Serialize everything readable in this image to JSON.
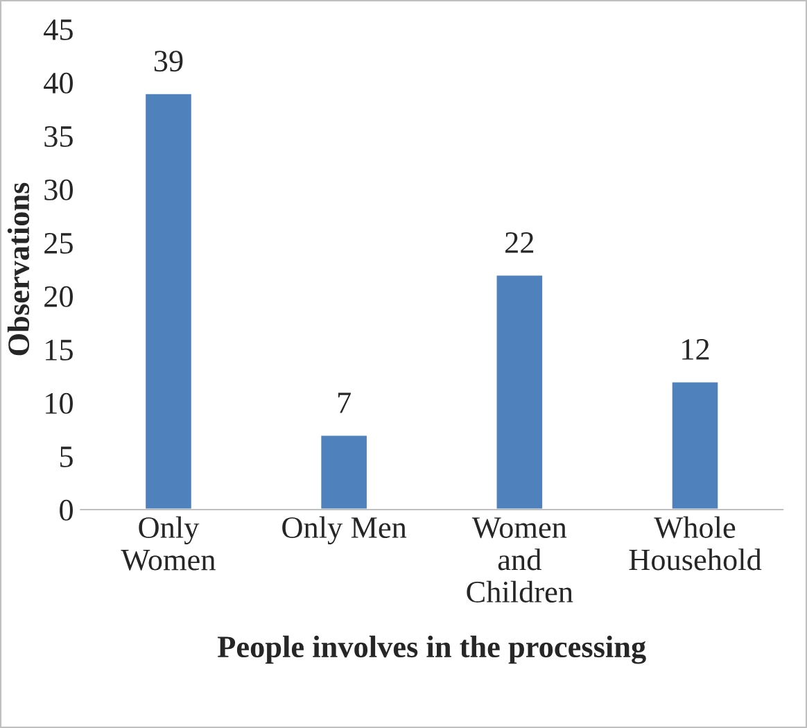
{
  "chart_data": {
    "type": "bar",
    "xlabel": "People involves in the processing",
    "ylabel": "Observations",
    "categories": [
      "Only\nWomen",
      "Only Men",
      "Women\nand\nChildren",
      "Whole\nHousehold"
    ],
    "values": [
      39,
      7,
      22,
      12
    ],
    "color": "#4f81bd",
    "ylim": [
      0,
      45
    ],
    "yticks": [
      0,
      5,
      10,
      15,
      20,
      25,
      30,
      35,
      40,
      45
    ],
    "grid": false,
    "data_labels": true
  }
}
